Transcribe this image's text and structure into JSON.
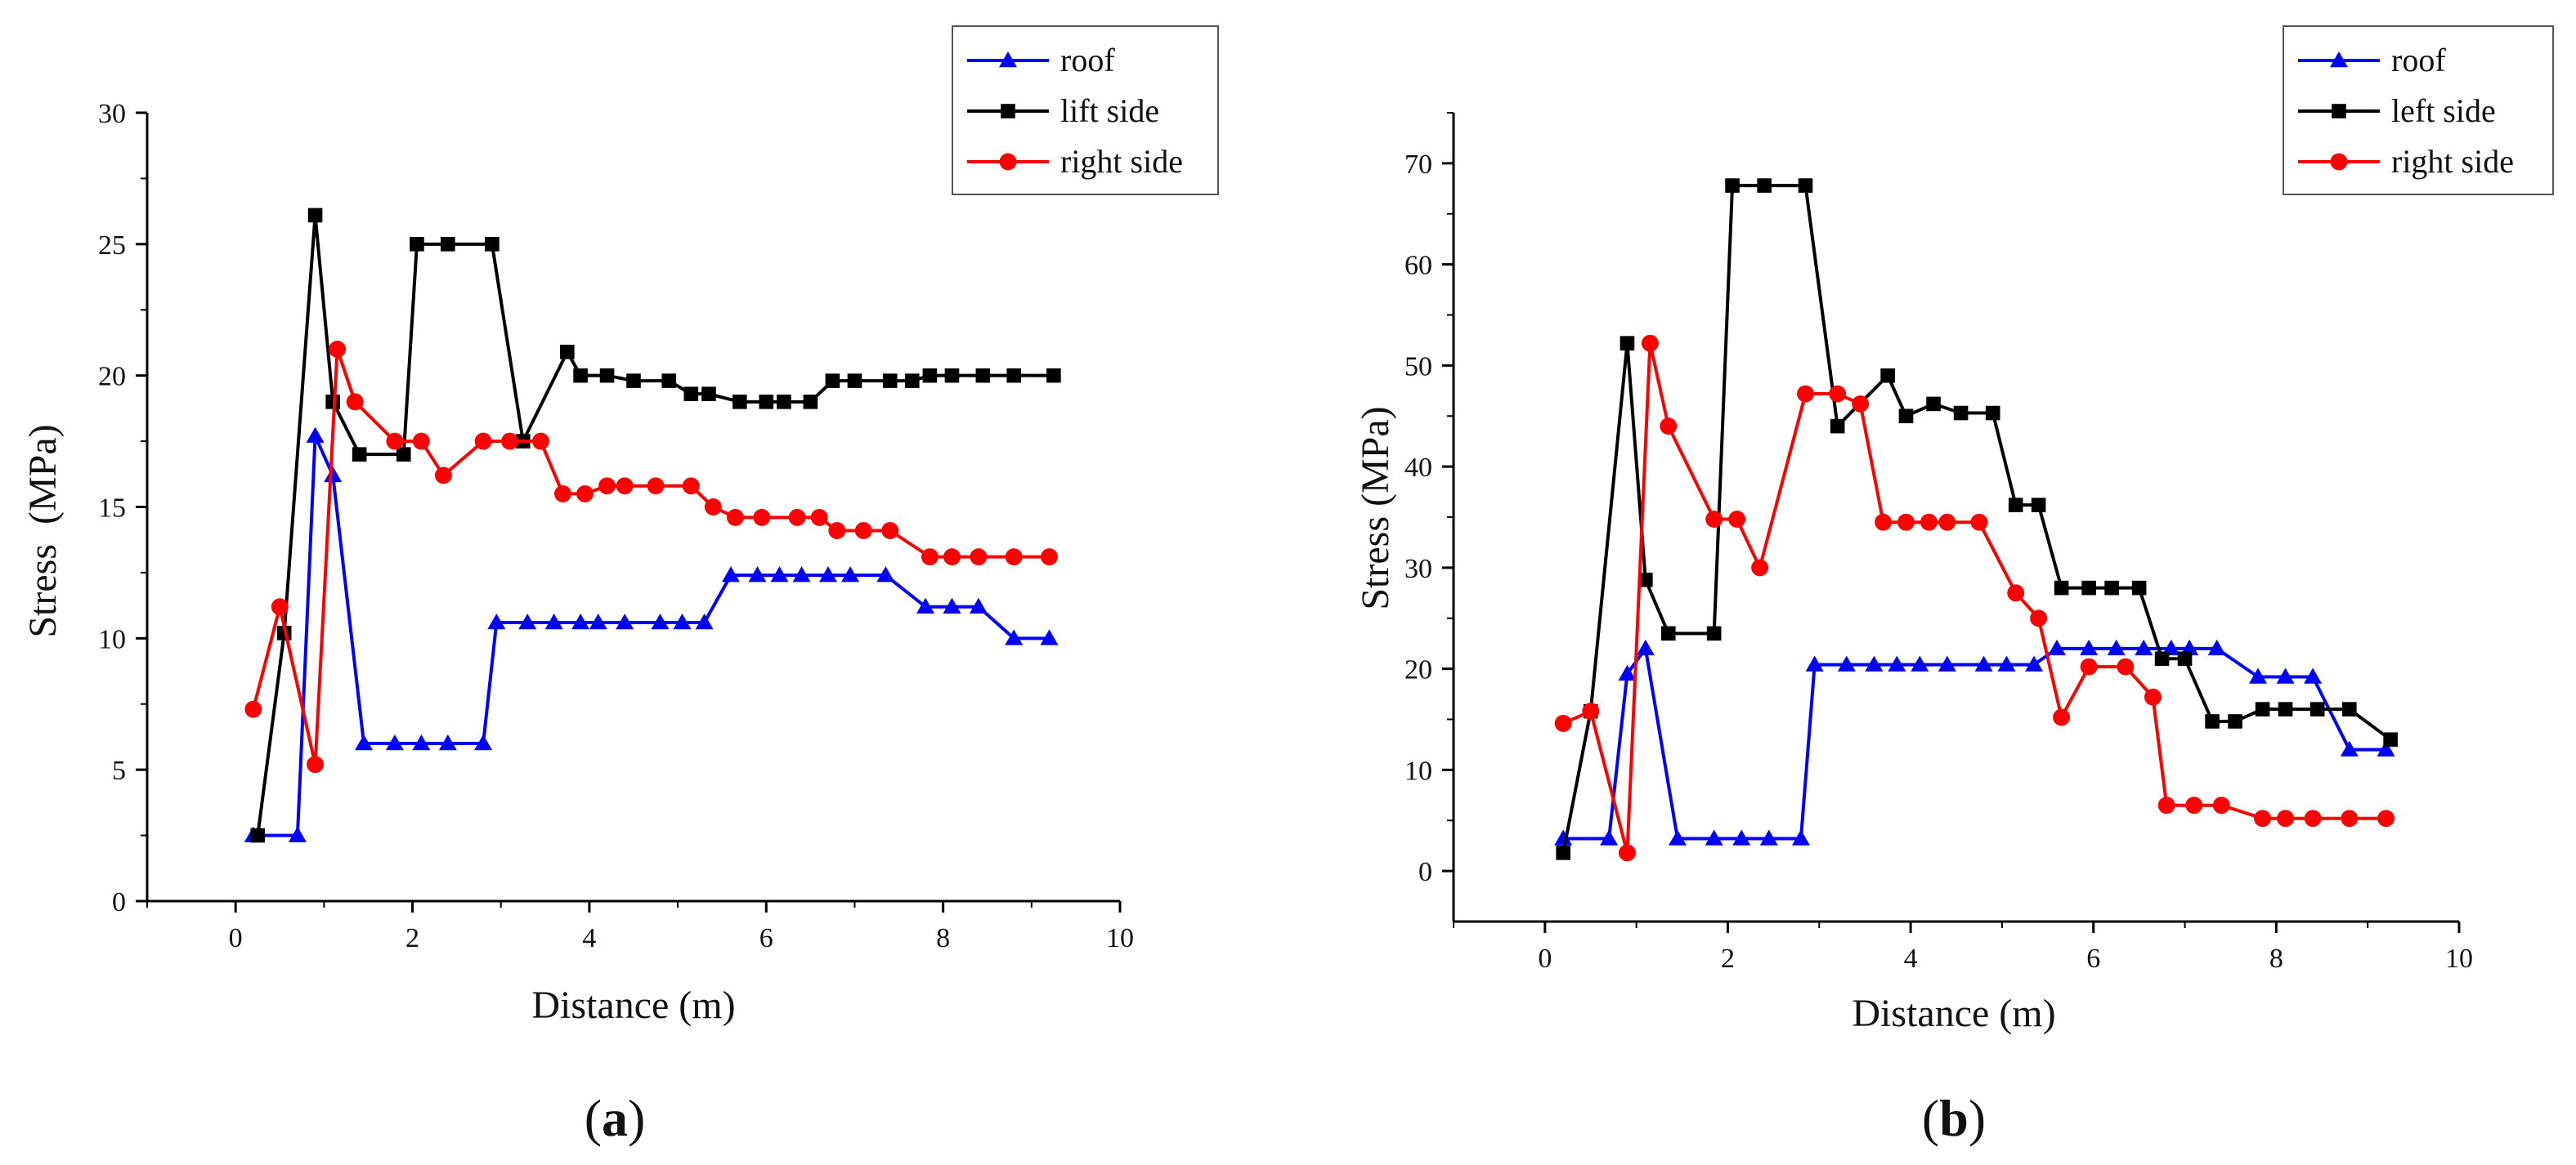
{
  "chart_data": [
    {
      "type": "line",
      "panel_label": "(a)",
      "panel_letter": "a",
      "xlabel": "Distance (m)",
      "ylabel": "Stress  (MPa)",
      "xlim": [
        -1,
        10
      ],
      "ylim": [
        0,
        30
      ],
      "xticks": [
        0,
        2,
        4,
        6,
        8,
        10
      ],
      "yticks": [
        0,
        5,
        10,
        15,
        20,
        25,
        30
      ],
      "legend_position": "top-right",
      "series": [
        {
          "name": "roof",
          "color": "#0000ff",
          "marker": "triangle",
          "points": [
            [
              0.2,
              2.5
            ],
            [
              0.7,
              2.5
            ],
            [
              0.9,
              17.7
            ],
            [
              1.1,
              16.2
            ],
            [
              1.45,
              6.0
            ],
            [
              1.8,
              6.0
            ],
            [
              2.1,
              6.0
            ],
            [
              2.4,
              6.0
            ],
            [
              2.8,
              6.0
            ],
            [
              2.95,
              10.6
            ],
            [
              3.3,
              10.6
            ],
            [
              3.6,
              10.6
            ],
            [
              3.9,
              10.6
            ],
            [
              4.1,
              10.6
            ],
            [
              4.4,
              10.6
            ],
            [
              4.8,
              10.6
            ],
            [
              5.05,
              10.6
            ],
            [
              5.3,
              10.6
            ],
            [
              5.6,
              12.4
            ],
            [
              5.9,
              12.4
            ],
            [
              6.15,
              12.4
            ],
            [
              6.4,
              12.4
            ],
            [
              6.7,
              12.4
            ],
            [
              6.95,
              12.4
            ],
            [
              7.35,
              12.4
            ],
            [
              7.8,
              11.2
            ],
            [
              8.1,
              11.2
            ],
            [
              8.4,
              11.2
            ],
            [
              8.8,
              10.0
            ],
            [
              9.2,
              10.0
            ]
          ]
        },
        {
          "name": "lift side",
          "color": "#000000",
          "marker": "square",
          "points": [
            [
              0.25,
              2.5
            ],
            [
              0.55,
              10.2
            ],
            [
              0.9,
              26.1
            ],
            [
              1.1,
              19.0
            ],
            [
              1.4,
              17.0
            ],
            [
              1.9,
              17.0
            ],
            [
              2.05,
              25.0
            ],
            [
              2.4,
              25.0
            ],
            [
              2.9,
              25.0
            ],
            [
              3.25,
              17.5
            ],
            [
              3.75,
              20.9
            ],
            [
              3.9,
              20.0
            ],
            [
              4.2,
              20.0
            ],
            [
              4.5,
              19.8
            ],
            [
              4.9,
              19.8
            ],
            [
              5.15,
              19.3
            ],
            [
              5.35,
              19.3
            ],
            [
              5.7,
              19.0
            ],
            [
              6.0,
              19.0
            ],
            [
              6.2,
              19.0
            ],
            [
              6.5,
              19.0
            ],
            [
              6.75,
              19.8
            ],
            [
              7.0,
              19.8
            ],
            [
              7.4,
              19.8
            ],
            [
              7.65,
              19.8
            ],
            [
              7.85,
              20.0
            ],
            [
              8.1,
              20.0
            ],
            [
              8.45,
              20.0
            ],
            [
              8.8,
              20.0
            ],
            [
              9.25,
              20.0
            ]
          ]
        },
        {
          "name": "right side",
          "color": "#ff0000",
          "marker": "circle",
          "points": [
            [
              0.2,
              7.3
            ],
            [
              0.5,
              11.2
            ],
            [
              0.9,
              5.2
            ],
            [
              1.15,
              21.0
            ],
            [
              1.35,
              19.0
            ],
            [
              1.8,
              17.5
            ],
            [
              2.1,
              17.5
            ],
            [
              2.35,
              16.2
            ],
            [
              2.8,
              17.5
            ],
            [
              3.1,
              17.5
            ],
            [
              3.45,
              17.5
            ],
            [
              3.7,
              15.5
            ],
            [
              3.95,
              15.5
            ],
            [
              4.2,
              15.8
            ],
            [
              4.4,
              15.8
            ],
            [
              4.75,
              15.8
            ],
            [
              5.15,
              15.8
            ],
            [
              5.4,
              15.0
            ],
            [
              5.65,
              14.6
            ],
            [
              5.95,
              14.6
            ],
            [
              6.35,
              14.6
            ],
            [
              6.6,
              14.6
            ],
            [
              6.8,
              14.1
            ],
            [
              7.1,
              14.1
            ],
            [
              7.4,
              14.1
            ],
            [
              7.85,
              13.1
            ],
            [
              8.1,
              13.1
            ],
            [
              8.4,
              13.1
            ],
            [
              8.8,
              13.1
            ],
            [
              9.2,
              13.1
            ]
          ]
        }
      ]
    },
    {
      "type": "line",
      "panel_label": "(b)",
      "panel_letter": "b",
      "xlabel": "Distance (m)",
      "ylabel": "Stress (MPa)",
      "xlim": [
        -1,
        10
      ],
      "ylim": [
        -5,
        75
      ],
      "xticks": [
        0,
        2,
        4,
        6,
        8,
        10
      ],
      "yticks": [
        0,
        10,
        20,
        30,
        40,
        50,
        60,
        70
      ],
      "legend_position": "top-right",
      "series": [
        {
          "name": "roof",
          "color": "#0000ff",
          "marker": "triangle",
          "points": [
            [
              0.2,
              3.2
            ],
            [
              0.7,
              3.2
            ],
            [
              0.9,
              19.5
            ],
            [
              1.1,
              22.0
            ],
            [
              1.45,
              3.2
            ],
            [
              1.85,
              3.2
            ],
            [
              2.15,
              3.2
            ],
            [
              2.45,
              3.2
            ],
            [
              2.8,
              3.2
            ],
            [
              2.95,
              20.4
            ],
            [
              3.3,
              20.4
            ],
            [
              3.6,
              20.4
            ],
            [
              3.85,
              20.4
            ],
            [
              4.1,
              20.4
            ],
            [
              4.4,
              20.4
            ],
            [
              4.8,
              20.4
            ],
            [
              5.05,
              20.4
            ],
            [
              5.35,
              20.4
            ],
            [
              5.6,
              22.0
            ],
            [
              5.95,
              22.0
            ],
            [
              6.25,
              22.0
            ],
            [
              6.55,
              22.0
            ],
            [
              6.85,
              22.0
            ],
            [
              7.05,
              22.0
            ],
            [
              7.35,
              22.0
            ],
            [
              7.8,
              19.2
            ],
            [
              8.1,
              19.2
            ],
            [
              8.4,
              19.2
            ],
            [
              8.8,
              12.0
            ],
            [
              9.2,
              12.0
            ]
          ]
        },
        {
          "name": "left side",
          "color": "#000000",
          "marker": "square",
          "points": [
            [
              0.2,
              1.8
            ],
            [
              0.5,
              15.8
            ],
            [
              0.9,
              52.2
            ],
            [
              1.1,
              28.8
            ],
            [
              1.35,
              23.5
            ],
            [
              1.85,
              23.5
            ],
            [
              2.05,
              67.8
            ],
            [
              2.4,
              67.8
            ],
            [
              2.85,
              67.8
            ],
            [
              3.2,
              44.0
            ],
            [
              3.75,
              49.0
            ],
            [
              3.95,
              45.0
            ],
            [
              4.25,
              46.2
            ],
            [
              4.55,
              45.3
            ],
            [
              4.9,
              45.3
            ],
            [
              5.15,
              36.2
            ],
            [
              5.4,
              36.2
            ],
            [
              5.65,
              28.0
            ],
            [
              5.95,
              28.0
            ],
            [
              6.2,
              28.0
            ],
            [
              6.5,
              28.0
            ],
            [
              6.75,
              21.0
            ],
            [
              7.0,
              21.0
            ],
            [
              7.3,
              14.8
            ],
            [
              7.55,
              14.8
            ],
            [
              7.85,
              16.0
            ],
            [
              8.1,
              16.0
            ],
            [
              8.45,
              16.0
            ],
            [
              8.8,
              16.0
            ],
            [
              9.25,
              13.0
            ]
          ]
        },
        {
          "name": "right side",
          "color": "#ff0000",
          "marker": "circle",
          "points": [
            [
              0.2,
              14.6
            ],
            [
              0.5,
              15.8
            ],
            [
              0.9,
              1.8
            ],
            [
              1.15,
              52.2
            ],
            [
              1.35,
              44.0
            ],
            [
              1.85,
              34.8
            ],
            [
              2.1,
              34.8
            ],
            [
              2.35,
              30.0
            ],
            [
              2.85,
              47.2
            ],
            [
              3.2,
              47.2
            ],
            [
              3.45,
              46.2
            ],
            [
              3.7,
              34.5
            ],
            [
              3.95,
              34.5
            ],
            [
              4.2,
              34.5
            ],
            [
              4.4,
              34.5
            ],
            [
              4.75,
              34.5
            ],
            [
              5.15,
              27.5
            ],
            [
              5.4,
              25.0
            ],
            [
              5.65,
              15.2
            ],
            [
              5.95,
              20.2
            ],
            [
              6.35,
              20.2
            ],
            [
              6.65,
              17.2
            ],
            [
              6.8,
              6.5
            ],
            [
              7.1,
              6.5
            ],
            [
              7.4,
              6.5
            ],
            [
              7.85,
              5.2
            ],
            [
              8.1,
              5.2
            ],
            [
              8.4,
              5.2
            ],
            [
              8.8,
              5.2
            ],
            [
              9.2,
              5.2
            ]
          ]
        }
      ]
    }
  ]
}
